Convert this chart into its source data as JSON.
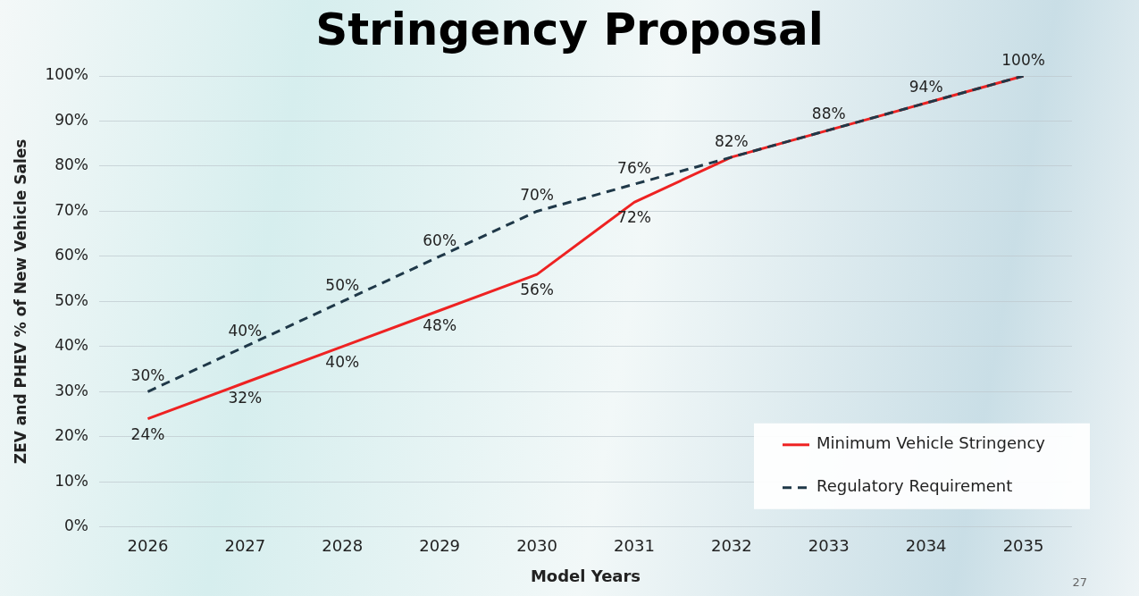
{
  "chart_data": {
    "type": "line",
    "title": "Stringency Proposal",
    "xlabel": "Model Years",
    "ylabel": "ZEV and PHEV % of New Vehicle Sales",
    "categories": [
      "2026",
      "2027",
      "2028",
      "2029",
      "2030",
      "2031",
      "2032",
      "2033",
      "2034",
      "2035"
    ],
    "series": [
      {
        "name": "Minimum Vehicle Stringency",
        "color": "#ee2222",
        "line_style": "solid",
        "values": [
          24,
          32,
          40,
          48,
          56,
          72,
          82,
          88,
          94,
          100
        ],
        "value_labels": [
          "24%",
          "32%",
          "40%",
          "48%",
          "56%",
          "72%",
          null,
          null,
          null,
          null
        ]
      },
      {
        "name": "Regulatory Requirement",
        "color": "#1f3848",
        "line_style": "dashed",
        "values": [
          30,
          40,
          50,
          60,
          70,
          76,
          82,
          88,
          94,
          100
        ],
        "value_labels": [
          "30%",
          "40%",
          "50%",
          "60%",
          "70%",
          "76%",
          "82%",
          "88%",
          "94%",
          "100%"
        ]
      }
    ],
    "ylim": [
      0,
      100
    ],
    "yticks": [
      {
        "value": 0,
        "label": "0%"
      },
      {
        "value": 10,
        "label": "10%"
      },
      {
        "value": 20,
        "label": "20%"
      },
      {
        "value": 30,
        "label": "30%"
      },
      {
        "value": 40,
        "label": "40%"
      },
      {
        "value": 50,
        "label": "50%"
      },
      {
        "value": 60,
        "label": "60%"
      },
      {
        "value": 70,
        "label": "70%"
      },
      {
        "value": 80,
        "label": "80%"
      },
      {
        "value": 90,
        "label": "90%"
      },
      {
        "value": 100,
        "label": "100%"
      }
    ],
    "grid": "y",
    "legend": "bottom right",
    "marker": "none",
    "annotations": [
      "27"
    ]
  }
}
